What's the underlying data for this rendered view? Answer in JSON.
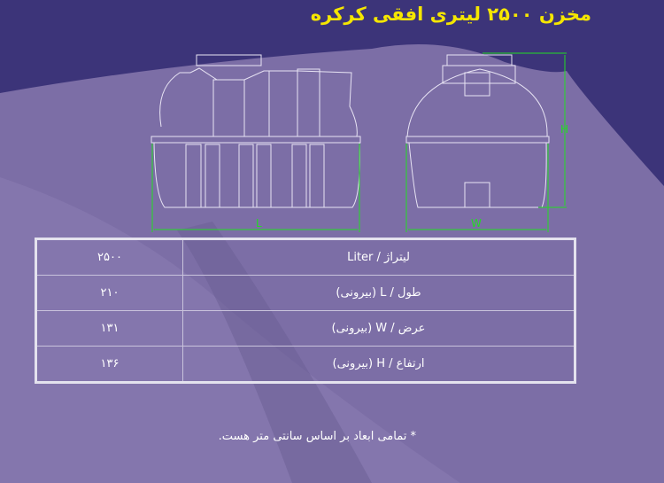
{
  "title": "مخزن ۲۵۰۰ لیتری افقی کرکره",
  "drawing": {
    "length_label": "L",
    "width_label": "W",
    "height_label": "H",
    "dimension_color": "#22dd22"
  },
  "specs": [
    {
      "label": "لیتراژ / Liter",
      "value": "۲۵۰۰"
    },
    {
      "label": "طول / L (بیرونی)",
      "value": "۲۱۰"
    },
    {
      "label": "عرض / W (بیرونی)",
      "value": "۱۳۱"
    },
    {
      "label": "ارتفاع / H (بیرونی)",
      "value": "۱۳۶"
    }
  ],
  "footnote": "* تمامی ابعاد بر اساس سانتی متر هست."
}
